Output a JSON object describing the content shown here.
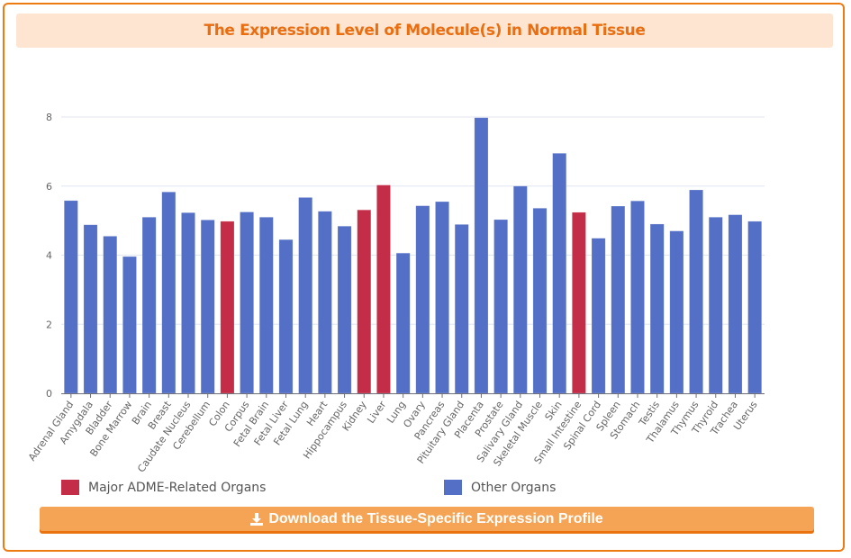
{
  "panel": {
    "title": "The Expression Level of Molecule(s) in Normal Tissue",
    "download_label": "Download the Tissue-Specific Expression Profile",
    "download_icon": "download-icon"
  },
  "colors": {
    "frame": "#ee7a12",
    "title_bg": "#fde5d2",
    "title_text": "#ea6d10",
    "adme": "#c42d47",
    "other": "#5470c6",
    "button": "#f4a454"
  },
  "legend": {
    "items": [
      {
        "label": "Major ADME-Related Organs",
        "color": "#c42d47"
      },
      {
        "label": "Other Organs",
        "color": "#5470c6"
      }
    ]
  },
  "chart_data": {
    "type": "bar",
    "title": "The Expression Level of Molecule(s) in Normal Tissue",
    "xlabel": "",
    "ylabel": "",
    "ylim": [
      0,
      8
    ],
    "yticks": [
      0,
      2,
      4,
      6,
      8
    ],
    "grid": true,
    "legend_position": "bottom",
    "categories": [
      "Adrenal Gland",
      "Amygdala",
      "Bladder",
      "Bone Marrow",
      "Brain",
      "Breast",
      "Caudate Nucleus",
      "Cerebellum",
      "Colon",
      "Corpus",
      "Fetal Brain",
      "Fetal Liver",
      "Fetal Lung",
      "Heart",
      "Hippocampus",
      "Kidney",
      "Liver",
      "Lung",
      "Ovary",
      "Pancreas",
      "Pituitary Gland",
      "Placenta",
      "Prostate",
      "Salivary Gland",
      "Skeletal Muscle",
      "Skin",
      "Small Intestine",
      "Spinal Cord",
      "Spleen",
      "Stomach",
      "Testis",
      "Thalamus",
      "Thymus",
      "Thyroid",
      "Trachea",
      "Uterus"
    ],
    "values": [
      5.58,
      4.88,
      4.55,
      3.96,
      5.1,
      5.83,
      5.23,
      5.02,
      4.98,
      5.25,
      5.1,
      4.45,
      5.67,
      5.27,
      4.84,
      5.31,
      6.03,
      4.06,
      5.43,
      5.55,
      4.89,
      7.98,
      5.03,
      6.0,
      5.36,
      6.95,
      5.24,
      4.49,
      5.42,
      5.57,
      4.9,
      4.7,
      5.89,
      5.1,
      5.17,
      4.98
    ],
    "groups": [
      "other",
      "other",
      "other",
      "other",
      "other",
      "other",
      "other",
      "other",
      "adme",
      "other",
      "other",
      "other",
      "other",
      "other",
      "other",
      "adme",
      "adme",
      "other",
      "other",
      "other",
      "other",
      "other",
      "other",
      "other",
      "other",
      "other",
      "adme",
      "other",
      "other",
      "other",
      "other",
      "other",
      "other",
      "other",
      "other",
      "other"
    ],
    "series_names": {
      "adme": "Major ADME-Related Organs",
      "other": "Other Organs"
    }
  }
}
